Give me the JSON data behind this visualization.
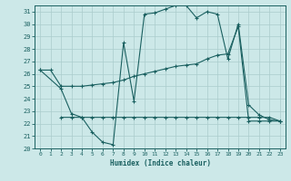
{
  "bg_color": "#cce8e8",
  "grid_color": "#aacccc",
  "line_color": "#1a6060",
  "xlabel": "Humidex (Indice chaleur)",
  "xlim": [
    -0.5,
    23.5
  ],
  "ylim": [
    20,
    31.5
  ],
  "yticks": [
    20,
    21,
    22,
    23,
    24,
    25,
    26,
    27,
    28,
    29,
    30,
    31
  ],
  "xticks": [
    0,
    1,
    2,
    3,
    4,
    5,
    6,
    7,
    8,
    9,
    10,
    11,
    12,
    13,
    14,
    15,
    16,
    17,
    18,
    19,
    20,
    21,
    22,
    23
  ],
  "curve1_x": [
    0,
    2,
    3,
    4,
    5,
    6,
    7,
    8,
    9,
    10,
    11,
    12,
    13,
    14,
    15,
    16,
    17,
    18,
    19,
    20,
    21,
    22,
    23
  ],
  "curve1_y": [
    26.3,
    24.8,
    22.8,
    22.5,
    21.3,
    20.5,
    20.3,
    28.5,
    23.8,
    30.8,
    30.9,
    31.2,
    31.5,
    31.5,
    30.5,
    31.0,
    30.8,
    27.2,
    30.0,
    23.5,
    22.7,
    22.3,
    22.2
  ],
  "curve2_x": [
    0,
    1,
    2,
    3,
    4,
    5,
    6,
    7,
    8,
    9,
    10,
    11,
    12,
    13,
    14,
    15,
    16,
    17,
    18,
    19,
    20,
    21,
    22,
    23
  ],
  "curve2_y": [
    26.3,
    26.3,
    25.0,
    25.0,
    25.0,
    25.1,
    25.2,
    25.3,
    25.5,
    25.8,
    26.0,
    26.2,
    26.4,
    26.6,
    26.7,
    26.8,
    27.2,
    27.5,
    27.6,
    29.8,
    22.2,
    22.2,
    22.2,
    22.2
  ],
  "curve3_x": [
    2,
    3,
    4,
    5,
    6,
    7,
    8,
    9,
    10,
    11,
    12,
    13,
    14,
    15,
    16,
    17,
    18,
    19,
    20,
    21,
    22,
    23
  ],
  "curve3_y": [
    22.5,
    22.5,
    22.5,
    22.5,
    22.5,
    22.5,
    22.5,
    22.5,
    22.5,
    22.5,
    22.5,
    22.5,
    22.5,
    22.5,
    22.5,
    22.5,
    22.5,
    22.5,
    22.5,
    22.5,
    22.5,
    22.2
  ]
}
